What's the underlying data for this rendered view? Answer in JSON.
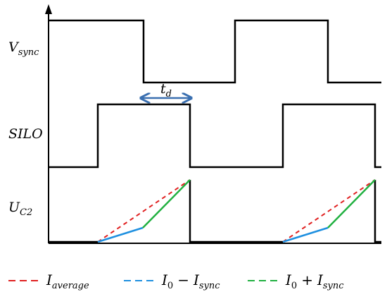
{
  "signals": [
    {
      "id": "vsync",
      "label": "V",
      "sub": "sync"
    },
    {
      "id": "silo",
      "label": "SILO"
    },
    {
      "id": "uc2",
      "label": "U",
      "sub": "C2"
    }
  ],
  "delay_label": {
    "label": "t",
    "sub": "d"
  },
  "legend": [
    {
      "id": "avg",
      "label": "I",
      "sub": "average",
      "color": "#e02020",
      "dash": "dashed"
    },
    {
      "id": "minus",
      "label": "I",
      "sub0": "0",
      "op": "−",
      "label2": "I",
      "sub": "sync",
      "color": "#1e90e0",
      "dash": "dashed"
    },
    {
      "id": "plus",
      "label": "I",
      "sub0": "0",
      "op": "+",
      "label2": "I",
      "sub": "sync",
      "color": "#20b040",
      "dash": "dashed"
    }
  ],
  "colors": {
    "axis": "#000000",
    "delay_arrow": "#3a6fb0",
    "average": "#e02020",
    "minus": "#1e90e0",
    "plus": "#20b040"
  }
}
